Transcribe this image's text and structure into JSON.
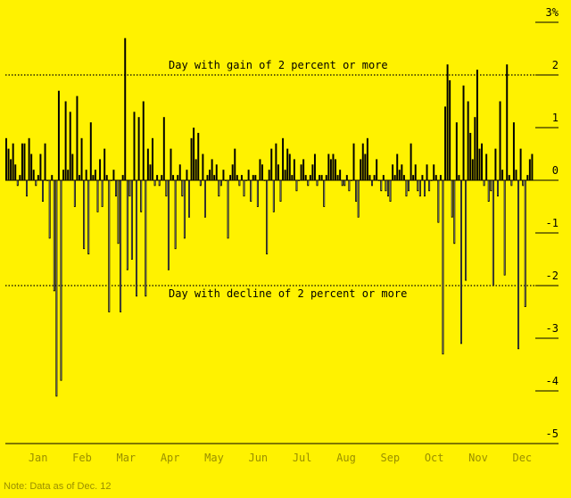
{
  "chart_data": {
    "type": "bar",
    "title": "",
    "xlabel": "",
    "ylabel": "",
    "ylim": [
      -5,
      3
    ],
    "yticks": [
      {
        "value": 3,
        "label": "3%"
      },
      {
        "value": 2,
        "label": "2"
      },
      {
        "value": 1,
        "label": "1"
      },
      {
        "value": 0,
        "label": "0"
      },
      {
        "value": -1,
        "label": "-1"
      },
      {
        "value": -2,
        "label": "-2"
      },
      {
        "value": -3,
        "label": "-3"
      },
      {
        "value": -4,
        "label": "-4"
      },
      {
        "value": -5,
        "label": "-5"
      }
    ],
    "months": [
      "Jan",
      "Feb",
      "Mar",
      "Apr",
      "May",
      "Jun",
      "Jul",
      "Aug",
      "Sep",
      "Oct",
      "Nov",
      "Dec"
    ],
    "series": [
      {
        "values": [
          0.8,
          0.6,
          0.4,
          0.7,
          0.3,
          -0.1,
          0.1,
          0.7,
          0.7,
          -0.3,
          0.8,
          0.5,
          0.2,
          -0.1,
          0.1,
          0.5,
          -0.4,
          0.7,
          0.0,
          -1.1,
          0.1,
          -2.1,
          -4.1,
          1.7,
          -3.8,
          0.2,
          1.5,
          0.2,
          1.3,
          0.5,
          -0.5,
          1.6,
          0.1,
          0.8,
          -1.3,
          0.2,
          -1.4,
          1.1,
          0.1,
          0.2,
          -0.6,
          0.4,
          -0.5,
          0.6,
          0.1,
          -2.5,
          0.0,
          0.2,
          -0.3,
          -1.2,
          -2.5,
          0.1,
          2.7,
          -1.7,
          -0.3,
          -1.5,
          1.3,
          -2.2,
          1.2,
          -0.6,
          1.5,
          -2.2,
          0.6,
          0.3,
          0.8,
          -0.1,
          0.1,
          -0.1,
          0.1,
          1.2,
          -0.3,
          -1.7,
          0.6,
          0.1,
          -1.3,
          0.1,
          0.3,
          -0.3,
          -1.1,
          0.2,
          -0.7,
          0.8,
          1.0,
          0.4,
          0.9,
          -0.1,
          0.5,
          -0.7,
          0.1,
          0.2,
          0.4,
          0.1,
          0.3,
          -0.3,
          -0.1,
          0.2,
          0.0,
          -1.1,
          0.1,
          0.3,
          0.6,
          0.1,
          -0.1,
          0.1,
          -0.3,
          0.0,
          0.2,
          -0.4,
          0.1,
          0.1,
          -0.5,
          0.4,
          0.3,
          0.0,
          -1.4,
          0.2,
          0.6,
          -0.6,
          0.7,
          0.3,
          -0.4,
          0.8,
          0.2,
          0.6,
          0.5,
          0.1,
          0.4,
          -0.2,
          0.0,
          0.3,
          0.4,
          0.1,
          -0.1,
          0.1,
          0.3,
          0.5,
          -0.1,
          0.1,
          0.1,
          -0.5,
          0.1,
          0.5,
          0.4,
          0.5,
          0.4,
          0.1,
          0.2,
          -0.1,
          -0.1,
          0.1,
          -0.2,
          0.0,
          0.7,
          -0.4,
          -0.7,
          0.4,
          0.7,
          0.5,
          0.8,
          0.1,
          -0.1,
          0.1,
          0.4,
          0.0,
          -0.2,
          0.1,
          -0.2,
          -0.3,
          -0.4,
          0.3,
          0.1,
          0.5,
          0.2,
          0.3,
          0.1,
          -0.3,
          -0.2,
          0.7,
          0.1,
          0.3,
          -0.2,
          -0.3,
          0.1,
          -0.3,
          0.3,
          -0.2,
          0.0,
          0.3,
          0.1,
          -0.8,
          0.1,
          -3.3,
          1.4,
          2.2,
          1.9,
          -0.7,
          -1.2,
          1.1,
          0.1,
          -3.1,
          1.8,
          -1.9,
          1.5,
          0.9,
          0.4,
          1.2,
          2.1,
          0.6,
          0.7,
          -0.1,
          0.5,
          -0.4,
          -0.2,
          -2.0,
          0.6,
          -0.3,
          1.5,
          0.2,
          -1.8,
          2.2,
          0.1,
          -0.1,
          1.1,
          0.2,
          -3.2,
          0.6,
          -0.1,
          -2.4,
          0.1,
          0.4,
          0.5
        ]
      }
    ],
    "annotations": [
      {
        "y": 2,
        "text": "Day with gain of 2 percent or more"
      },
      {
        "y": -2,
        "text": "Day with decline of 2 percent or more"
      }
    ],
    "colors": {
      "background": "#fff200",
      "gain": "#000000",
      "decline": "#ffffff",
      "decline_stroke": "#000000",
      "axis_text": "#9a8f00"
    }
  },
  "note": "Note: Data as of Dec. 12"
}
